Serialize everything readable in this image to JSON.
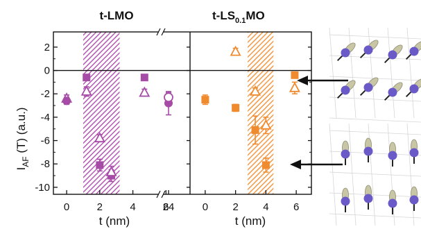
{
  "colors": {
    "panel_left": "#a64ca6",
    "panel_right": "#f08a2e",
    "panel_left_band": "#b45ab4",
    "panel_right_band": "#f29a48",
    "axis": "#111111",
    "sphere": "#6a5ac8",
    "spin": "#c8c6a4"
  },
  "chart_data": [
    {
      "type": "scatter",
      "panel": "left",
      "title": "t-LMO",
      "xlabel": "t (nm)",
      "ylabel_main": "I",
      "ylabel_sub": "AF",
      "ylabel_rest": " (T) (a.u.)",
      "xlim": [
        -0.8,
        5.4
      ],
      "axis_break": "x between 5 and 24",
      "x_ticks": [
        "0",
        "2",
        "4",
        "6",
        "24"
      ],
      "y_ticks": [
        "2",
        "0",
        "-2",
        "-4",
        "-6",
        "-8",
        "-10"
      ],
      "ylim": [
        -10.6,
        3.3
      ],
      "zero_line": true,
      "shaded_band_x": [
        1.0,
        3.2
      ],
      "series": [
        {
          "marker": "filled-square",
          "points": [
            {
              "x": 1.2,
              "y": -0.6,
              "err": 0
            },
            {
              "x": 2.0,
              "y": -8.1,
              "err": 0.5
            },
            {
              "x": 2.7,
              "y": -9.0,
              "err": 0.5
            },
            {
              "x": 4.7,
              "y": -0.6,
              "err": 0
            }
          ]
        },
        {
          "marker": "open-triangle",
          "points": [
            {
              "x": 0.0,
              "y": -2.4,
              "err": 0.3
            },
            {
              "x": 1.2,
              "y": -1.8,
              "err": 0.4
            },
            {
              "x": 2.0,
              "y": -5.8,
              "err": 0.3
            },
            {
              "x": 2.7,
              "y": -8.7,
              "err": 0.5
            },
            {
              "x": 4.7,
              "y": -1.9,
              "err": 0.3
            }
          ]
        },
        {
          "marker": "filled-circle",
          "points": [
            {
              "x": 0.0,
              "y": -2.6,
              "err": 0.3
            },
            {
              "x": 24,
              "y": -2.8,
              "err": 1.0
            }
          ]
        },
        {
          "marker": "open-circle",
          "points": [
            {
              "x": 24,
              "y": -2.3,
              "err": 0.4
            }
          ]
        }
      ]
    },
    {
      "type": "scatter",
      "panel": "right",
      "title_main": "t-LS",
      "title_sub": "0.1",
      "title_rest": "MO",
      "xlabel": "t (nm)",
      "xlim": [
        -1.0,
        7.0
      ],
      "x_ticks": [
        "0",
        "2",
        "4",
        "6"
      ],
      "ylim": [
        -10.6,
        3.3
      ],
      "zero_line": true,
      "shaded_band_x": [
        2.8,
        4.5
      ],
      "series": [
        {
          "marker": "filled-square",
          "points": [
            {
              "x": 0.0,
              "y": -2.5,
              "err": 0.4
            },
            {
              "x": 2.0,
              "y": -3.2,
              "err": 0.3
            },
            {
              "x": 3.3,
              "y": -5.1,
              "err": 1.2
            },
            {
              "x": 4.0,
              "y": -8.1,
              "err": 0.6
            },
            {
              "x": 5.9,
              "y": -0.4,
              "err": 0
            }
          ]
        },
        {
          "marker": "open-triangle",
          "points": [
            {
              "x": 2.0,
              "y": 1.6,
              "err": 0.3
            },
            {
              "x": 3.3,
              "y": -1.8,
              "err": 0.3
            },
            {
              "x": 4.0,
              "y": -4.7,
              "err": 0.7
            },
            {
              "x": 5.9,
              "y": -1.5,
              "err": 0.5
            }
          ]
        }
      ]
    }
  ]
}
